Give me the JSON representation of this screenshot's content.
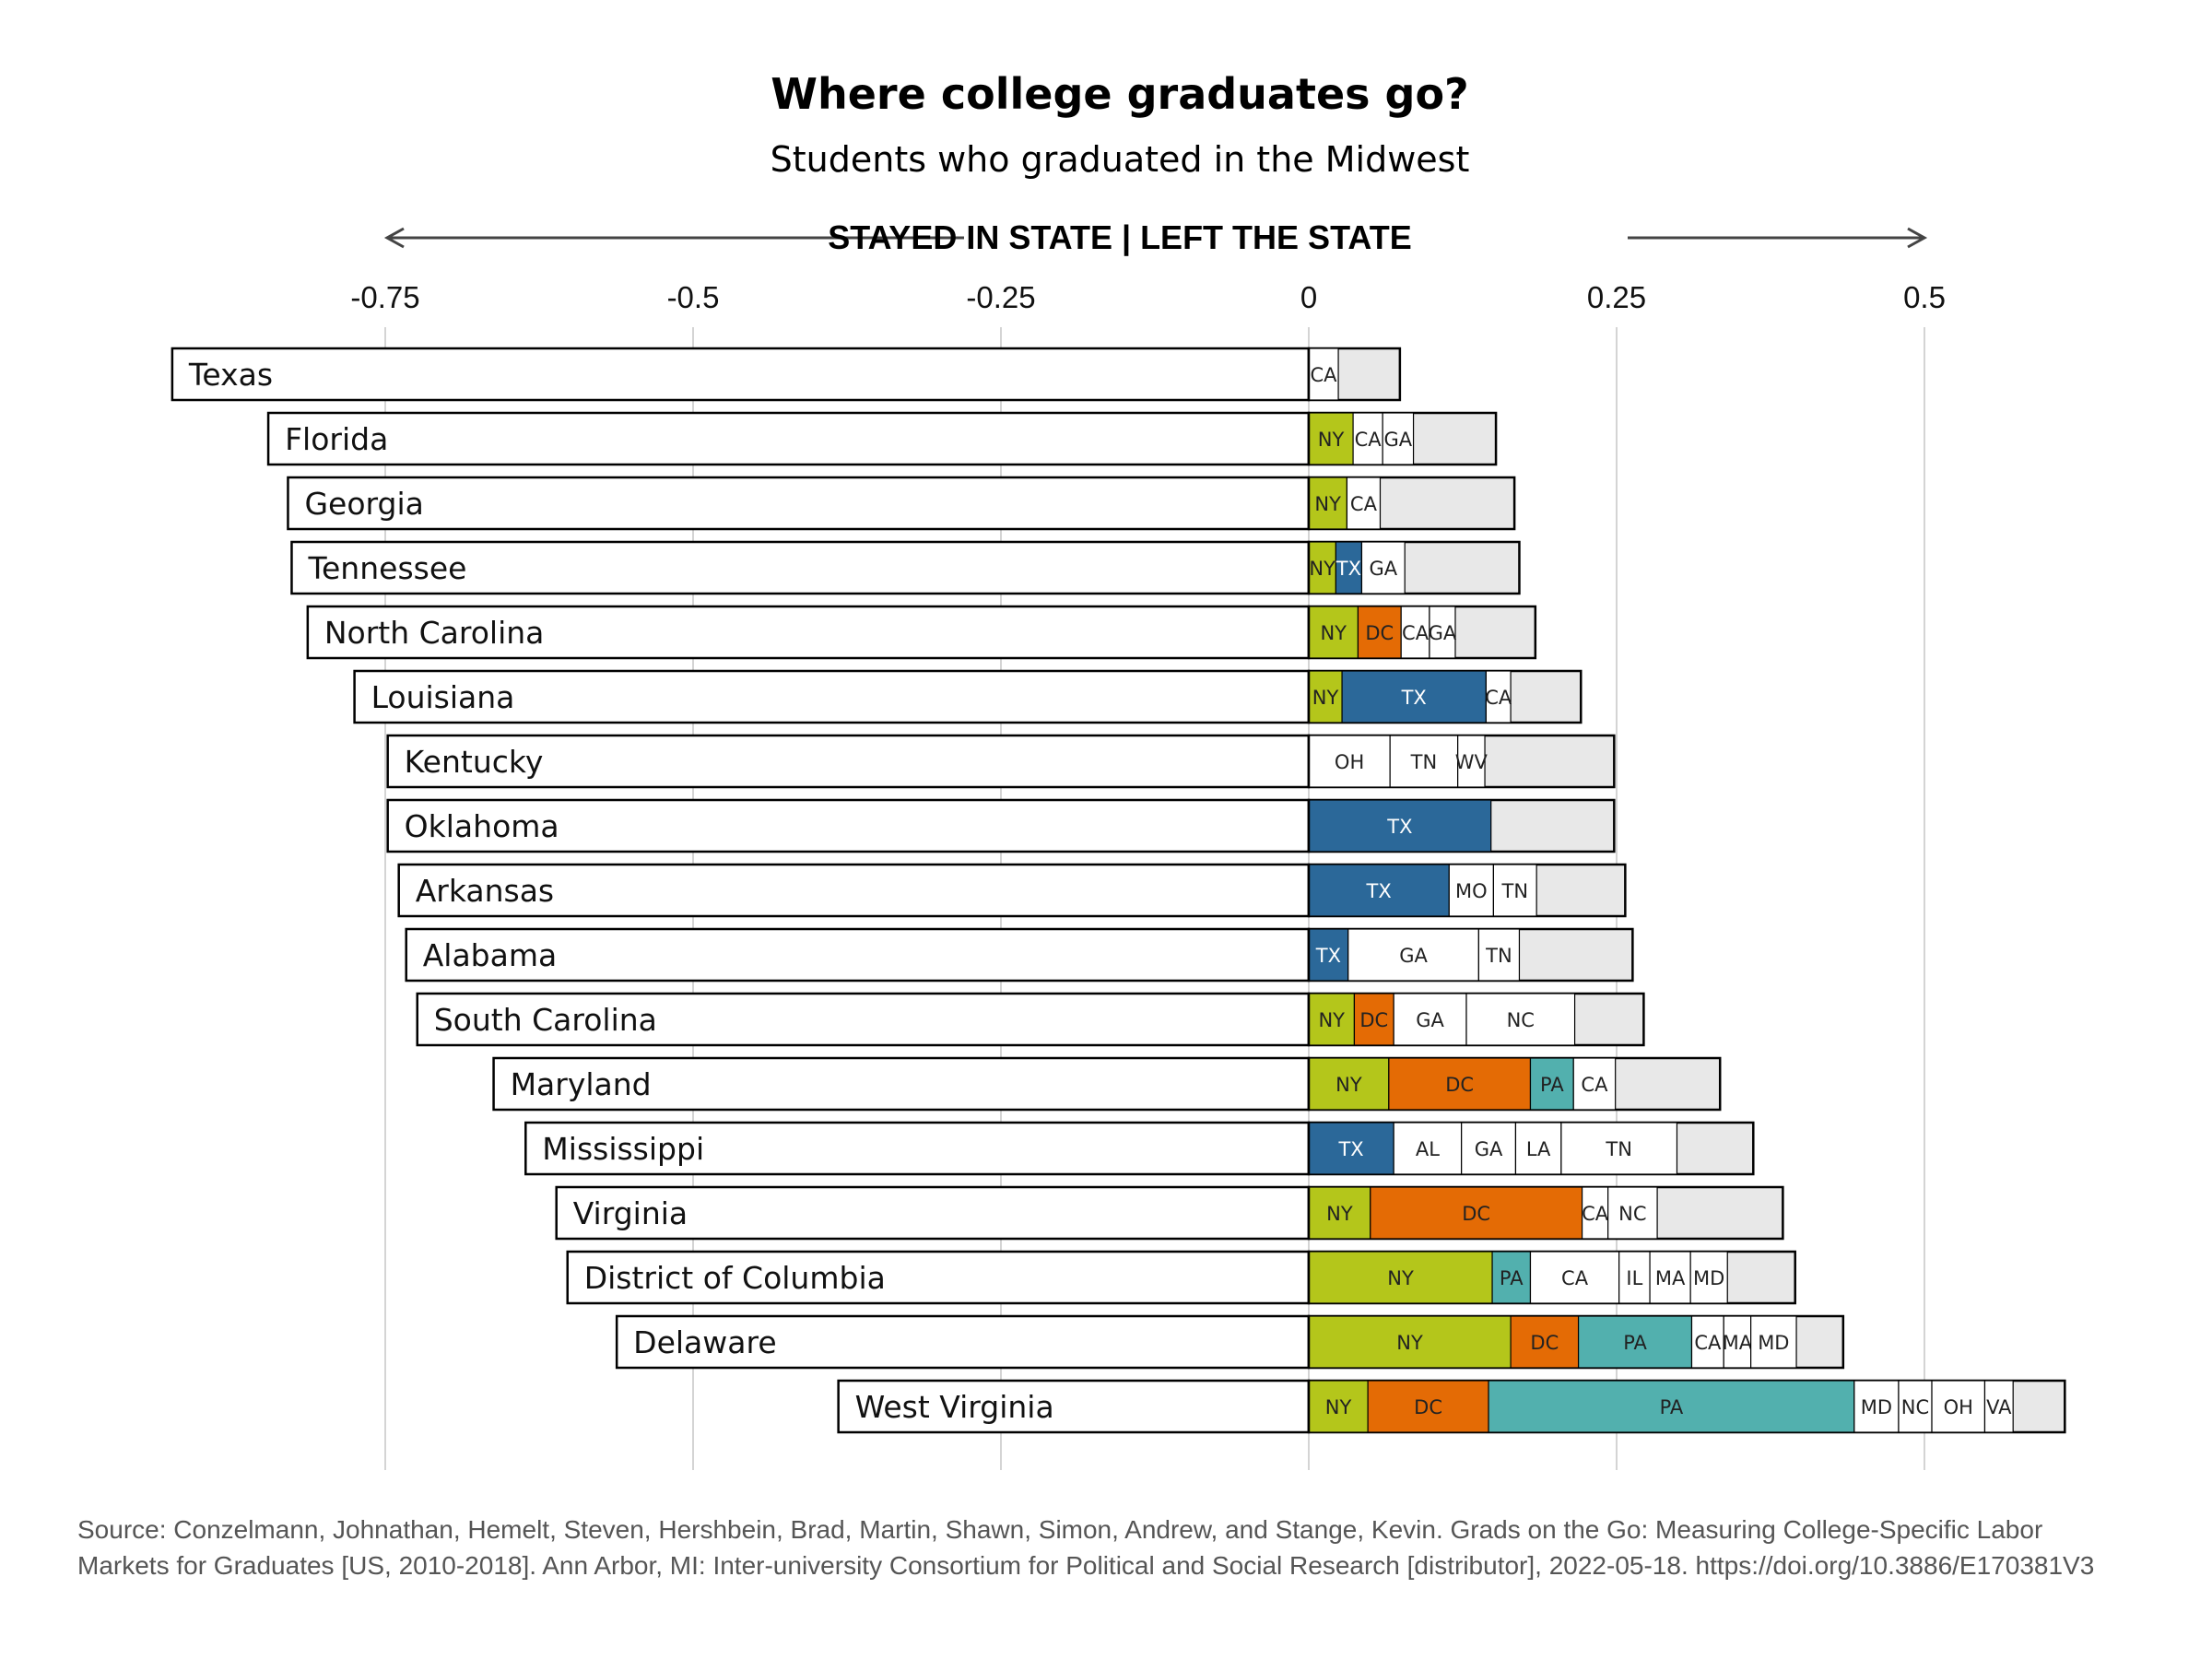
{
  "palette": {
    "NY": "#b4c61b",
    "DC": "#e46b05",
    "TX": "#2b6899",
    "PA": "#52b0ae",
    "other": "#ffffff",
    "rest": "#e8e8e8",
    "text_light": "#ffffff",
    "text_dark": "#222222"
  },
  "chart_data": {
    "type": "bar",
    "stacked": true,
    "orientation": "horizontal",
    "title": "Where college graduates go?",
    "subtitle": "Students who graduated in the Midwest",
    "axis_caption": "STAYED IN STATE | LEFT THE STATE",
    "xlim": [
      -0.75,
      0.5
    ],
    "ticks": [
      {
        "value": -0.75,
        "label": "-0.75"
      },
      {
        "value": -0.5,
        "label": "-0.5"
      },
      {
        "value": -0.25,
        "label": "-0.25"
      },
      {
        "value": 0,
        "label": "0"
      },
      {
        "value": 0.25,
        "label": "0.25"
      },
      {
        "value": 0.5,
        "label": "0.5"
      }
    ],
    "grid": true,
    "states": [
      {
        "name": "Texas",
        "stayed": 0.923,
        "left_total": 0.074,
        "segments": [
          {
            "label": "CA",
            "value": 0.024
          }
        ]
      },
      {
        "name": "Florida",
        "stayed": 0.845,
        "left_total": 0.152,
        "segments": [
          {
            "label": "NY",
            "value": 0.036
          },
          {
            "label": "CA",
            "value": 0.024
          },
          {
            "label": "GA",
            "value": 0.025
          }
        ]
      },
      {
        "name": "Georgia",
        "stayed": 0.829,
        "left_total": 0.167,
        "segments": [
          {
            "label": "NY",
            "value": 0.031
          },
          {
            "label": "CA",
            "value": 0.027
          }
        ]
      },
      {
        "name": "Tennessee",
        "stayed": 0.826,
        "left_total": 0.171,
        "segments": [
          {
            "label": "NY",
            "value": 0.022
          },
          {
            "label": "TX",
            "value": 0.021
          },
          {
            "label": "GA",
            "value": 0.035
          }
        ]
      },
      {
        "name": "North Carolina",
        "stayed": 0.813,
        "left_total": 0.184,
        "segments": [
          {
            "label": "NY",
            "value": 0.04
          },
          {
            "label": "DC",
            "value": 0.035
          },
          {
            "label": "CA",
            "value": 0.023
          },
          {
            "label": "GA",
            "value": 0.021
          }
        ]
      },
      {
        "name": "Louisiana",
        "stayed": 0.775,
        "left_total": 0.221,
        "segments": [
          {
            "label": "NY",
            "value": 0.027
          },
          {
            "label": "TX",
            "value": 0.117
          },
          {
            "label": "CA",
            "value": 0.02
          }
        ]
      },
      {
        "name": "Kentucky",
        "stayed": 0.748,
        "left_total": 0.248,
        "segments": [
          {
            "label": "OH",
            "value": 0.066
          },
          {
            "label": "TN",
            "value": 0.055
          },
          {
            "label": "WV",
            "value": 0.022
          }
        ]
      },
      {
        "name": "Oklahoma",
        "stayed": 0.748,
        "left_total": 0.248,
        "segments": [
          {
            "label": "TX",
            "value": 0.148
          }
        ]
      },
      {
        "name": "Arkansas",
        "stayed": 0.739,
        "left_total": 0.257,
        "segments": [
          {
            "label": "TX",
            "value": 0.114
          },
          {
            "label": "MO",
            "value": 0.036
          },
          {
            "label": "TN",
            "value": 0.035
          }
        ]
      },
      {
        "name": "Alabama",
        "stayed": 0.733,
        "left_total": 0.263,
        "segments": [
          {
            "label": "TX",
            "value": 0.032
          },
          {
            "label": "GA",
            "value": 0.106
          },
          {
            "label": "TN",
            "value": 0.033
          }
        ]
      },
      {
        "name": "South Carolina",
        "stayed": 0.724,
        "left_total": 0.272,
        "segments": [
          {
            "label": "NY",
            "value": 0.037
          },
          {
            "label": "DC",
            "value": 0.032
          },
          {
            "label": "GA",
            "value": 0.059
          },
          {
            "label": "NC",
            "value": 0.088
          }
        ]
      },
      {
        "name": "Maryland",
        "stayed": 0.662,
        "left_total": 0.334,
        "segments": [
          {
            "label": "NY",
            "value": 0.065
          },
          {
            "label": "DC",
            "value": 0.115
          },
          {
            "label": "PA",
            "value": 0.035
          },
          {
            "label": "CA",
            "value": 0.034
          }
        ]
      },
      {
        "name": "Mississippi",
        "stayed": 0.636,
        "left_total": 0.361,
        "segments": [
          {
            "label": "TX",
            "value": 0.069
          },
          {
            "label": "AL",
            "value": 0.055
          },
          {
            "label": "GA",
            "value": 0.044
          },
          {
            "label": "LA",
            "value": 0.037
          },
          {
            "label": "TN",
            "value": 0.094
          }
        ]
      },
      {
        "name": "Virginia",
        "stayed": 0.611,
        "left_total": 0.385,
        "segments": [
          {
            "label": "NY",
            "value": 0.05
          },
          {
            "label": "DC",
            "value": 0.172
          },
          {
            "label": "CA",
            "value": 0.021
          },
          {
            "label": "NC",
            "value": 0.04
          }
        ]
      },
      {
        "name": "District of Columbia",
        "stayed": 0.602,
        "left_total": 0.395,
        "segments": [
          {
            "label": "NY",
            "value": 0.149
          },
          {
            "label": "PA",
            "value": 0.031
          },
          {
            "label": "CA",
            "value": 0.072
          },
          {
            "label": "IL",
            "value": 0.025
          },
          {
            "label": "MA",
            "value": 0.033
          },
          {
            "label": "MD",
            "value": 0.03
          }
        ]
      },
      {
        "name": "Delaware",
        "stayed": 0.562,
        "left_total": 0.434,
        "segments": [
          {
            "label": "NY",
            "value": 0.164
          },
          {
            "label": "DC",
            "value": 0.055
          },
          {
            "label": "PA",
            "value": 0.092
          },
          {
            "label": "CA",
            "value": 0.026
          },
          {
            "label": "MA",
            "value": 0.022
          },
          {
            "label": "MD",
            "value": 0.037
          }
        ]
      },
      {
        "name": "West Virginia",
        "stayed": 0.382,
        "left_total": 0.614,
        "segments": [
          {
            "label": "NY",
            "value": 0.048
          },
          {
            "label": "DC",
            "value": 0.098
          },
          {
            "label": "PA",
            "value": 0.297
          },
          {
            "label": "MD",
            "value": 0.036
          },
          {
            "label": "NC",
            "value": 0.027
          },
          {
            "label": "OH",
            "value": 0.043
          },
          {
            "label": "VA",
            "value": 0.023
          }
        ]
      }
    ]
  },
  "source": "Source: Conzelmann, Johnathan, Hemelt, Steven, Hershbein, Brad, Martin, Shawn, Simon, Andrew, and Stange, Kevin. Grads on the Go: Measuring College-Specific Labor Markets for Graduates [US, 2010-2018]. Ann Arbor, MI: Inter-university Consortium for Political and Social Research [distributor], 2022-05-18. https://doi.org/10.3886/E170381V3"
}
